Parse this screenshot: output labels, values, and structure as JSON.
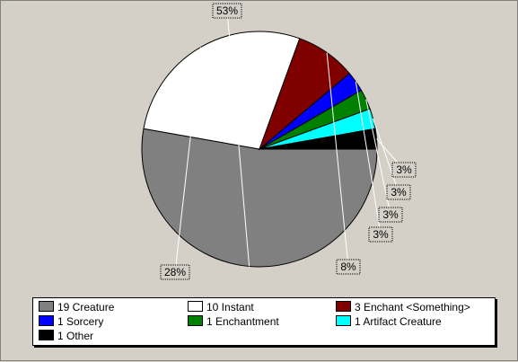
{
  "chart_data": {
    "type": "pie",
    "slices": [
      {
        "label": "Creature",
        "count": 19,
        "percent_label": "53%",
        "color": "#808080"
      },
      {
        "label": "Instant",
        "count": 10,
        "percent_label": "28%",
        "color": "#ffffff"
      },
      {
        "label": "Enchant <Something>",
        "count": 3,
        "percent_label": "8%",
        "color": "#800000"
      },
      {
        "label": "Sorcery",
        "count": 1,
        "percent_label": "3%",
        "color": "#0000ff"
      },
      {
        "label": "Enchantment",
        "count": 1,
        "percent_label": "3%",
        "color": "#008000"
      },
      {
        "label": "Artifact Creature",
        "count": 1,
        "percent_label": "3%",
        "color": "#00ffff"
      },
      {
        "label": "Other",
        "count": 1,
        "percent_label": "3%",
        "color": "#000000"
      }
    ],
    "legend_placement": "bottom",
    "start_angle_deg": 0,
    "direction": "clockwise"
  },
  "legend": {
    "items": [
      "19 Creature",
      "10 Instant",
      "3 Enchant <Something>",
      "1 Sorcery",
      "1 Enchantment",
      "1 Artifact Creature",
      "1 Other"
    ]
  },
  "colors": {
    "background": "#d4d0c8",
    "label_box": "#d4d0c8",
    "slice_border": "#000000"
  }
}
